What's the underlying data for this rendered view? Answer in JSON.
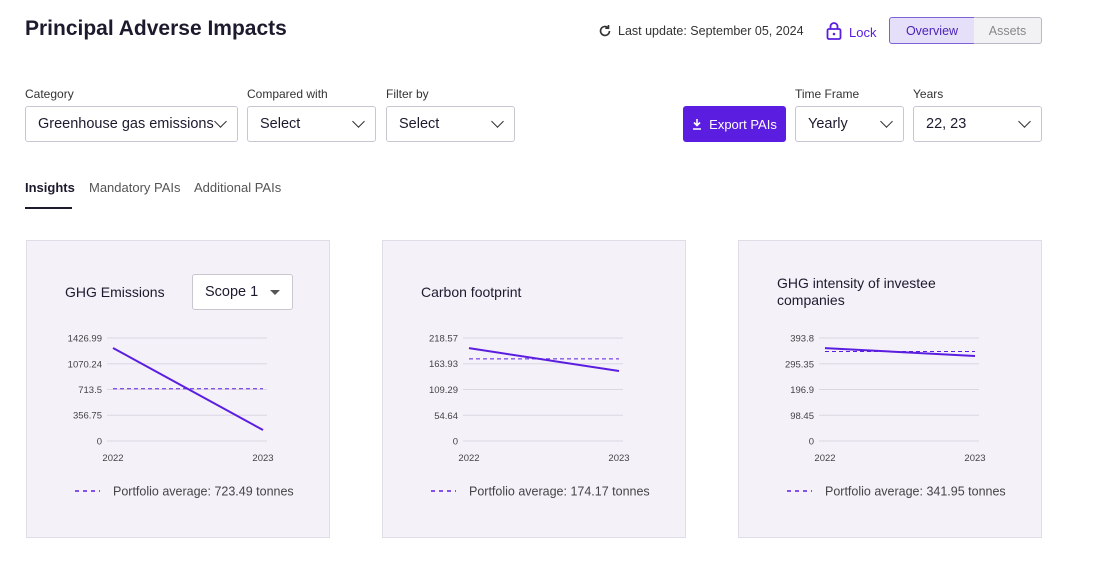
{
  "header": {
    "title": "Principal Adverse Impacts",
    "last_update": "Last update: September 05, 2024",
    "lock": "Lock",
    "view_tabs": [
      "Overview",
      "Assets"
    ]
  },
  "filters": [
    {
      "label": "Category",
      "value": "Greenhouse gas emissions"
    },
    {
      "label": "Compared with",
      "value": "Select"
    },
    {
      "label": "Filter by",
      "value": "Select"
    },
    {
      "label": "Time Frame",
      "value": "Yearly"
    },
    {
      "label": "Years",
      "value": "22, 23"
    }
  ],
  "export_button": "Export PAIs",
  "tabs": [
    "Insights",
    "Mandatory PAIs",
    "Additional PAIs"
  ],
  "chart_data": [
    {
      "type": "line",
      "title": "GHG Emissions",
      "dropdown": "Scope 1",
      "categories": [
        "2022",
        "2023"
      ],
      "values": [
        1289,
        152
      ],
      "color": "#5b1ee0",
      "ylim": [
        0,
        1426.99
      ],
      "yticks": [
        0,
        356.75,
        713.5,
        1070.24,
        1426.99
      ],
      "grid": true,
      "average": {
        "value": 723.49,
        "label": "Portfolio average: 723.49 tonnes"
      }
    },
    {
      "type": "line",
      "title": "Carbon footprint",
      "categories": [
        "2022",
        "2023"
      ],
      "values": [
        197,
        148.6
      ],
      "color": "#5b1ee0",
      "ylim": [
        0,
        218.57
      ],
      "yticks": [
        0,
        54.64,
        109.29,
        163.93,
        218.57
      ],
      "grid": true,
      "average": {
        "value": 174.17,
        "label": "Portfolio average: 174.17 tonnes"
      }
    },
    {
      "type": "line",
      "title": "GHG intensity of investee companies",
      "categories": [
        "2022",
        "2023"
      ],
      "values": [
        355,
        325
      ],
      "color": "#5b1ee0",
      "ylim": [
        0,
        393.8
      ],
      "yticks": [
        0,
        98.45,
        196.9,
        295.35,
        393.8
      ],
      "grid": true,
      "average": {
        "value": 341.95,
        "label": "Portfolio average: 341.95 tonnes"
      }
    }
  ]
}
